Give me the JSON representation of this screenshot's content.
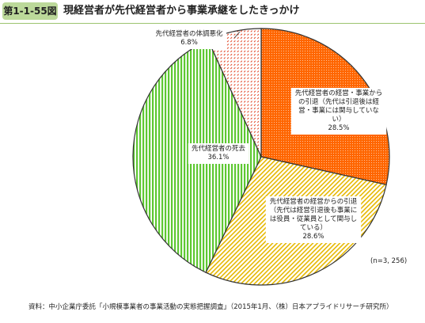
{
  "header": {
    "figure_number": "第1-1-55図",
    "title": "現経営者が先代経営者から事業承継をしたきっかけ"
  },
  "colors": {
    "orange": "#ff6600",
    "green": "#5ec832",
    "yellow": "#e6b800",
    "hatch_red": "#e04020",
    "border": "#333333",
    "badge": "#bcd99a"
  },
  "chart_data": {
    "type": "pie",
    "start": "12 o'clock, clockwise",
    "slices": [
      {
        "label_lines": [
          "先代経営者の経営・事業から",
          "の引退（先代は引退後は経",
          "営・事業には関与していな",
          "い）"
        ],
        "value": 28.5,
        "value_label": "28.5%",
        "fill": "solid-orange"
      },
      {
        "label_lines": [
          "先代経営者の経営からの引退",
          "（先代は経営引退後も事業に",
          "は役員・従業員として関与し",
          "ている）"
        ],
        "value": 28.6,
        "value_label": "28.6%",
        "fill": "yellow-diagonal-hatch"
      },
      {
        "label_lines": [
          "先代経営者の死去"
        ],
        "value": 36.1,
        "value_label": "36.1%",
        "fill": "green-vertical-lines"
      },
      {
        "label_lines": [
          "先代経営者の体調悪化"
        ],
        "value": 6.8,
        "value_label": "6.8%",
        "fill": "red-dotted-hatch"
      }
    ]
  },
  "note": "(n=3, 256)",
  "source": "資料：中小企業庁委託「小規模事業者の事業活動の実態把握調査」（2015年1月、（株）日本アプライドリサーチ研究所）"
}
